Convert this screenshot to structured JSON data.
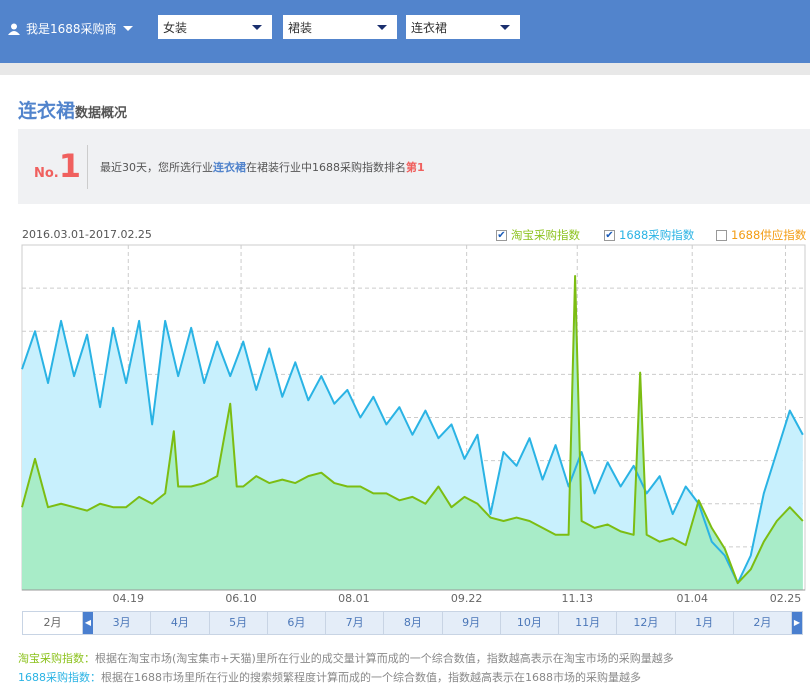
{
  "header": {
    "user_label": "我是1688采购商",
    "selects": [
      "女装",
      "裙装",
      "连衣裙"
    ]
  },
  "overview": {
    "title_main": "连衣裙",
    "title_sub": "数据概况",
    "rank_prefix": "No.",
    "rank_number": "1",
    "text_before": "最近30天，您所选行业",
    "text_category": "连衣裙",
    "text_middle": "在裙装行业中1688采购指数排名",
    "text_rank": "第1"
  },
  "chart_header": {
    "date_range": "2016.03.01-2017.02.25",
    "legend": [
      {
        "label": "淘宝采购指数",
        "checked": true,
        "color": "#8cc21d"
      },
      {
        "label": "1688采购指数",
        "checked": true,
        "color": "#2ab3e4"
      },
      {
        "label": "1688供应指数",
        "checked": false,
        "color": "#f39c12"
      }
    ]
  },
  "chart_data": {
    "type": "area",
    "xlabel": "",
    "ylabel": "",
    "xlim": [
      0,
      361
    ],
    "ylim": [
      0,
      100
    ],
    "grid": true,
    "x_ticks": [
      {
        "label": "04.19",
        "day": 49
      },
      {
        "label": "06.10",
        "day": 101
      },
      {
        "label": "08.01",
        "day": 153
      },
      {
        "label": "09.22",
        "day": 205
      },
      {
        "label": "11.13",
        "day": 256
      },
      {
        "label": "01.04",
        "day": 309
      },
      {
        "label": "02.25",
        "day": 352
      }
    ],
    "series": [
      {
        "name": "1688采购指数",
        "color": "#2ab3e4",
        "fill": "#c8f0fd",
        "points": [
          [
            0,
            64
          ],
          [
            6,
            75
          ],
          [
            12,
            60
          ],
          [
            18,
            78
          ],
          [
            24,
            62
          ],
          [
            30,
            74
          ],
          [
            36,
            53
          ],
          [
            42,
            76
          ],
          [
            48,
            60
          ],
          [
            54,
            78
          ],
          [
            60,
            48
          ],
          [
            66,
            78
          ],
          [
            72,
            62
          ],
          [
            78,
            76
          ],
          [
            84,
            60
          ],
          [
            90,
            72
          ],
          [
            96,
            62
          ],
          [
            102,
            72
          ],
          [
            108,
            58
          ],
          [
            114,
            70
          ],
          [
            120,
            56
          ],
          [
            126,
            66
          ],
          [
            132,
            55
          ],
          [
            138,
            62
          ],
          [
            144,
            54
          ],
          [
            150,
            58
          ],
          [
            156,
            50
          ],
          [
            162,
            56
          ],
          [
            168,
            48
          ],
          [
            174,
            53
          ],
          [
            180,
            45
          ],
          [
            186,
            52
          ],
          [
            192,
            44
          ],
          [
            198,
            48
          ],
          [
            204,
            38
          ],
          [
            210,
            45
          ],
          [
            216,
            22
          ],
          [
            222,
            40
          ],
          [
            228,
            36
          ],
          [
            234,
            44
          ],
          [
            240,
            32
          ],
          [
            246,
            42
          ],
          [
            252,
            30
          ],
          [
            258,
            40
          ],
          [
            264,
            28
          ],
          [
            270,
            37
          ],
          [
            276,
            30
          ],
          [
            282,
            36
          ],
          [
            288,
            28
          ],
          [
            294,
            33
          ],
          [
            300,
            22
          ],
          [
            306,
            30
          ],
          [
            312,
            25
          ],
          [
            318,
            14
          ],
          [
            324,
            10
          ],
          [
            330,
            2
          ],
          [
            336,
            10
          ],
          [
            342,
            28
          ],
          [
            348,
            40
          ],
          [
            354,
            52
          ],
          [
            360,
            45
          ]
        ]
      },
      {
        "name": "淘宝采购指数",
        "color": "#7cbd12",
        "fill": "#a8ecc8",
        "points": [
          [
            0,
            24
          ],
          [
            6,
            38
          ],
          [
            12,
            24
          ],
          [
            18,
            25
          ],
          [
            24,
            24
          ],
          [
            30,
            23
          ],
          [
            36,
            25
          ],
          [
            42,
            24
          ],
          [
            48,
            24
          ],
          [
            54,
            27
          ],
          [
            60,
            25
          ],
          [
            66,
            28
          ],
          [
            70,
            46
          ],
          [
            72,
            30
          ],
          [
            78,
            30
          ],
          [
            84,
            31
          ],
          [
            90,
            33
          ],
          [
            96,
            54
          ],
          [
            99,
            30
          ],
          [
            102,
            30
          ],
          [
            108,
            33
          ],
          [
            114,
            31
          ],
          [
            120,
            32
          ],
          [
            126,
            31
          ],
          [
            132,
            33
          ],
          [
            138,
            34
          ],
          [
            144,
            31
          ],
          [
            150,
            30
          ],
          [
            156,
            30
          ],
          [
            162,
            28
          ],
          [
            168,
            28
          ],
          [
            174,
            26
          ],
          [
            180,
            27
          ],
          [
            186,
            25
          ],
          [
            192,
            30
          ],
          [
            198,
            24
          ],
          [
            204,
            27
          ],
          [
            210,
            25
          ],
          [
            216,
            21
          ],
          [
            222,
            20
          ],
          [
            228,
            21
          ],
          [
            234,
            20
          ],
          [
            240,
            18
          ],
          [
            246,
            16
          ],
          [
            252,
            16
          ],
          [
            255,
            91
          ],
          [
            258,
            20
          ],
          [
            264,
            18
          ],
          [
            270,
            19
          ],
          [
            276,
            17
          ],
          [
            282,
            16
          ],
          [
            285,
            63
          ],
          [
            288,
            16
          ],
          [
            294,
            14
          ],
          [
            300,
            15
          ],
          [
            306,
            13
          ],
          [
            312,
            26
          ],
          [
            318,
            18
          ],
          [
            324,
            12
          ],
          [
            330,
            2
          ],
          [
            336,
            6
          ],
          [
            342,
            14
          ],
          [
            348,
            20
          ],
          [
            354,
            24
          ],
          [
            360,
            20
          ]
        ]
      }
    ]
  },
  "month_tabs": [
    "2月",
    "3月",
    "4月",
    "5月",
    "6月",
    "7月",
    "8月",
    "9月",
    "10月",
    "11月",
    "12月",
    "1月",
    "2月"
  ],
  "descriptions": [
    {
      "key": "淘宝采购指数：",
      "text": "根据在淘宝市场(淘宝集市+天猫)里所在行业的成交量计算而成的一个综合数值，指数越高表示在淘宝市场的采购量越多"
    },
    {
      "key": "1688采购指数：",
      "text": "根据在1688市场里所在行业的搜索频繁程度计算而成的一个综合数值，指数越高表示在1688市场的采购量越多"
    }
  ]
}
